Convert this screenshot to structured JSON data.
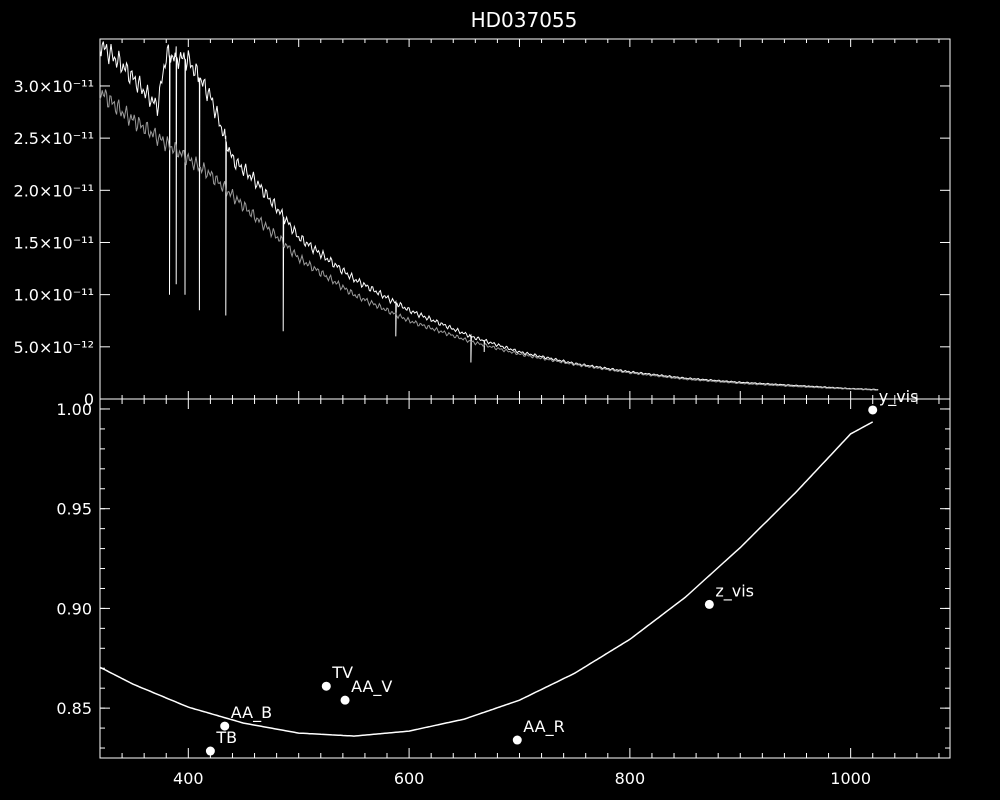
{
  "chart_data": [
    {
      "type": "line",
      "title": "HD037055",
      "xlim": [
        320,
        1090
      ],
      "ylim": [
        0,
        3.45e-11
      ],
      "grid": false,
      "ytick_labels": [
        {
          "value": 0,
          "label": "0"
        },
        {
          "value": 5e-12,
          "label": "5.0×10⁻¹²"
        },
        {
          "value": 1e-11,
          "label": "1.0×10⁻¹¹"
        },
        {
          "value": 1.5e-11,
          "label": "1.5×10⁻¹¹"
        },
        {
          "value": 2e-11,
          "label": "2.0×10⁻¹¹"
        },
        {
          "value": 2.5e-11,
          "label": "2.5×10⁻¹¹"
        },
        {
          "value": 3e-11,
          "label": "3.0×10⁻¹¹"
        }
      ],
      "series": [
        {
          "color": "#ffffff",
          "x": [
            320,
            340,
            360,
            372,
            380,
            400,
            420,
            440,
            460,
            486,
            500,
            550,
            600,
            656,
            700,
            750,
            800,
            850,
            900,
            950,
            1000,
            1025
          ],
          "y": [
            3.4e-11,
            3.2e-11,
            2.95e-11,
            2.8e-11,
            3.3e-11,
            3.25e-11,
            2.9e-11,
            2.3e-11,
            2.1e-11,
            1.75e-11,
            1.55e-11,
            1.15e-11,
            8.5e-12,
            6e-12,
            4.5e-12,
            3.4e-12,
            2.6e-12,
            2e-12,
            1.6e-12,
            1.3e-12,
            1e-12,
            9e-13
          ],
          "absorption_lines": [
            {
              "x": 383,
              "y": 1e-11
            },
            {
              "x": 389,
              "y": 1.1e-11
            },
            {
              "x": 397,
              "y": 1e-11
            },
            {
              "x": 410,
              "y": 8.5e-12
            },
            {
              "x": 434,
              "y": 8e-12
            },
            {
              "x": 486,
              "y": 6.5e-12
            },
            {
              "x": 588,
              "y": 6e-12
            },
            {
              "x": 656,
              "y": 3.5e-12
            },
            {
              "x": 668,
              "y": 4.5e-12
            }
          ]
        },
        {
          "color": "#9a9a9a",
          "x": [
            320,
            340,
            360,
            380,
            400,
            420,
            440,
            460,
            486,
            500,
            550,
            600,
            656,
            700,
            750,
            800,
            850,
            900,
            950,
            1000,
            1025
          ],
          "y": [
            2.95e-11,
            2.75e-11,
            2.6e-11,
            2.45e-11,
            2.3e-11,
            2.15e-11,
            1.95e-11,
            1.75e-11,
            1.5e-11,
            1.35e-11,
            1e-11,
            7.5e-12,
            5.5e-12,
            4.3e-12,
            3.3e-12,
            2.5e-12,
            1.9e-12,
            1.5e-12,
            1.2e-12,
            9.5e-13,
            8.5e-13
          ]
        }
      ]
    },
    {
      "type": "scatter",
      "xlim": [
        320,
        1090
      ],
      "ylim": [
        0.825,
        1.005
      ],
      "xtick_labels": [
        "400",
        "600",
        "800",
        "1000"
      ],
      "xtick_values": [
        400,
        600,
        800,
        1000
      ],
      "ytick_labels": [
        "0.85",
        "0.90",
        "0.95",
        "1.00"
      ],
      "ytick_values": [
        0.85,
        0.9,
        0.95,
        1.0
      ],
      "grid": false,
      "points": [
        {
          "label": "TB",
          "x": 420,
          "y": 0.8285
        },
        {
          "label": "AA_B",
          "x": 433,
          "y": 0.841
        },
        {
          "label": "TV",
          "x": 525,
          "y": 0.861
        },
        {
          "label": "AA_V",
          "x": 542,
          "y": 0.854
        },
        {
          "label": "AA_R",
          "x": 698,
          "y": 0.834
        },
        {
          "label": "z_vis",
          "x": 872,
          "y": 0.902
        },
        {
          "label": "y_vis",
          "x": 1020,
          "y": 0.9995
        }
      ],
      "fit_curve": {
        "color": "#ffffff",
        "x": [
          320,
          350,
          400,
          450,
          500,
          550,
          600,
          650,
          700,
          750,
          800,
          850,
          900,
          950,
          1000,
          1020
        ],
        "y": [
          0.8705,
          0.862,
          0.8505,
          0.8425,
          0.8375,
          0.836,
          0.8385,
          0.8445,
          0.854,
          0.8675,
          0.8845,
          0.9055,
          0.9305,
          0.958,
          0.9875,
          0.9935
        ]
      }
    }
  ]
}
